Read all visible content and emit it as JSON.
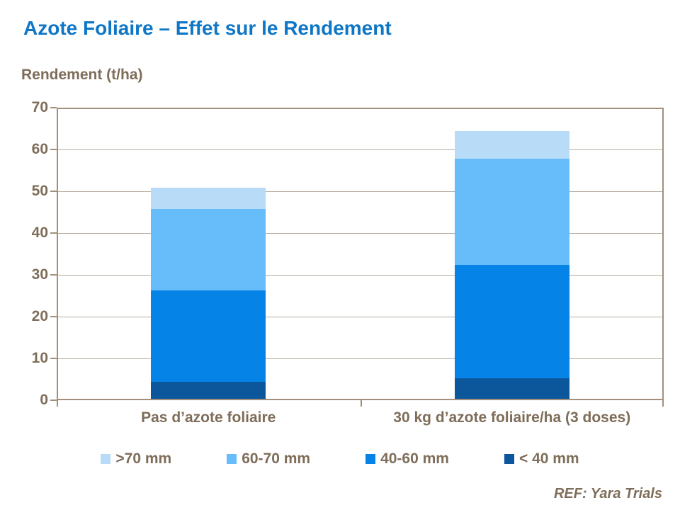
{
  "title": "Azote Foliaire – Effet sur le Rendement",
  "ref_note": "REF: Yara Trials",
  "colors": {
    "background": "#ffffff",
    "title_blue": "#0d76c6",
    "text_brown": "#7e6d59",
    "gridline": "#b5aba1",
    "axis_border": "#a2907c"
  },
  "chart_data": {
    "type": "bar",
    "stacked": true,
    "title": "Azote Foliaire – Effet sur le Rendement",
    "ylabel": "Rendement (t/ha)",
    "xlabel": "",
    "ylim": [
      0,
      70
    ],
    "yticks": [
      0,
      10,
      20,
      30,
      40,
      50,
      60,
      70
    ],
    "grid": true,
    "legend_position": "bottom",
    "categories": [
      "Pas d’azote foliaire",
      "30 kg d’azote foliaire/ha (3 doses)"
    ],
    "series": [
      {
        "name": "< 40 mm",
        "color": "#0c569c",
        "values": [
          4,
          5
        ]
      },
      {
        "name": "40-60 mm",
        "color": "#0583e6",
        "values": [
          22,
          27
        ]
      },
      {
        "name": "60-70 mm",
        "color": "#67bcfa",
        "values": [
          19.5,
          25.5
        ]
      },
      {
        "name": ">70 mm",
        "color": "#b8dcf8",
        "values": [
          5,
          6.5
        ]
      }
    ],
    "totals": [
      50.5,
      64
    ],
    "legend_order": [
      ">70 mm",
      "60-70 mm",
      "40-60 mm",
      "< 40 mm"
    ]
  }
}
